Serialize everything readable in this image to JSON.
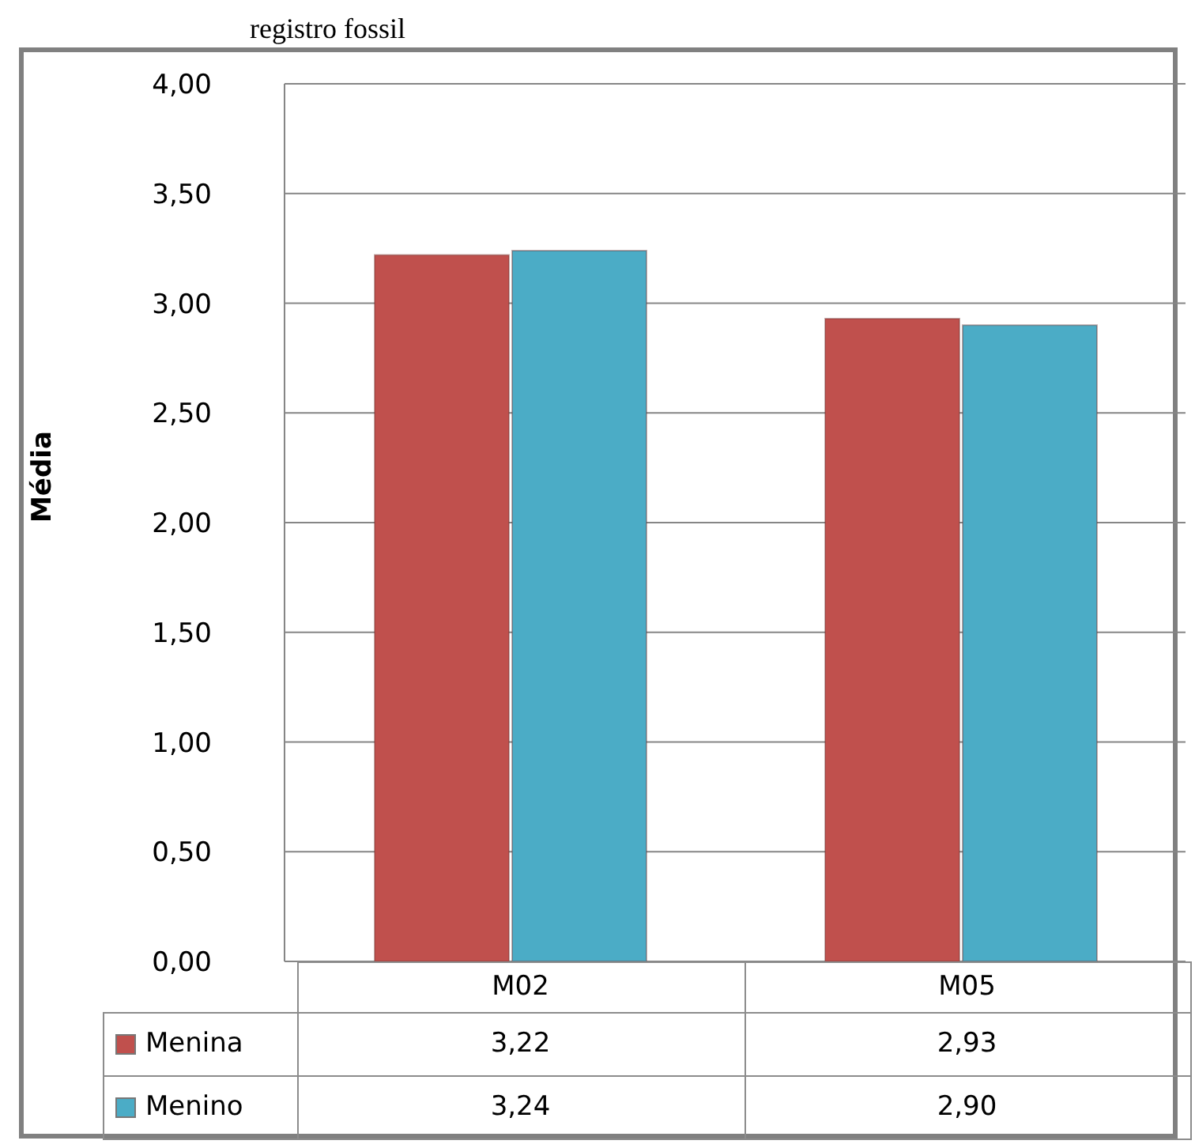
{
  "chart_data": {
    "type": "bar",
    "ylabel": "Média",
    "annotations": [
      "registro fossil"
    ],
    "categories": [
      "M02",
      "M05"
    ],
    "series": [
      {
        "name": "Menina",
        "color": "#c0504d",
        "values": [
          3.22,
          2.93
        ],
        "value_labels": [
          "3,22",
          "2,93"
        ]
      },
      {
        "name": "Menino",
        "color": "#4bacc6",
        "values": [
          3.24,
          2.9
        ],
        "value_labels": [
          "3,24",
          "2,90"
        ]
      }
    ],
    "ylim": [
      0,
      4
    ],
    "yticks": [
      {
        "value": 0,
        "label": "0,00"
      },
      {
        "value": 0.5,
        "label": "0,50"
      },
      {
        "value": 1,
        "label": "1,00"
      },
      {
        "value": 1.5,
        "label": "1,50"
      },
      {
        "value": 2,
        "label": "2,00"
      },
      {
        "value": 2.5,
        "label": "2,50"
      },
      {
        "value": 3,
        "label": "3,00"
      },
      {
        "value": 3.5,
        "label": "3,50"
      },
      {
        "value": 4,
        "label": "4,00"
      }
    ],
    "grid": "y",
    "legend": "bottom"
  }
}
